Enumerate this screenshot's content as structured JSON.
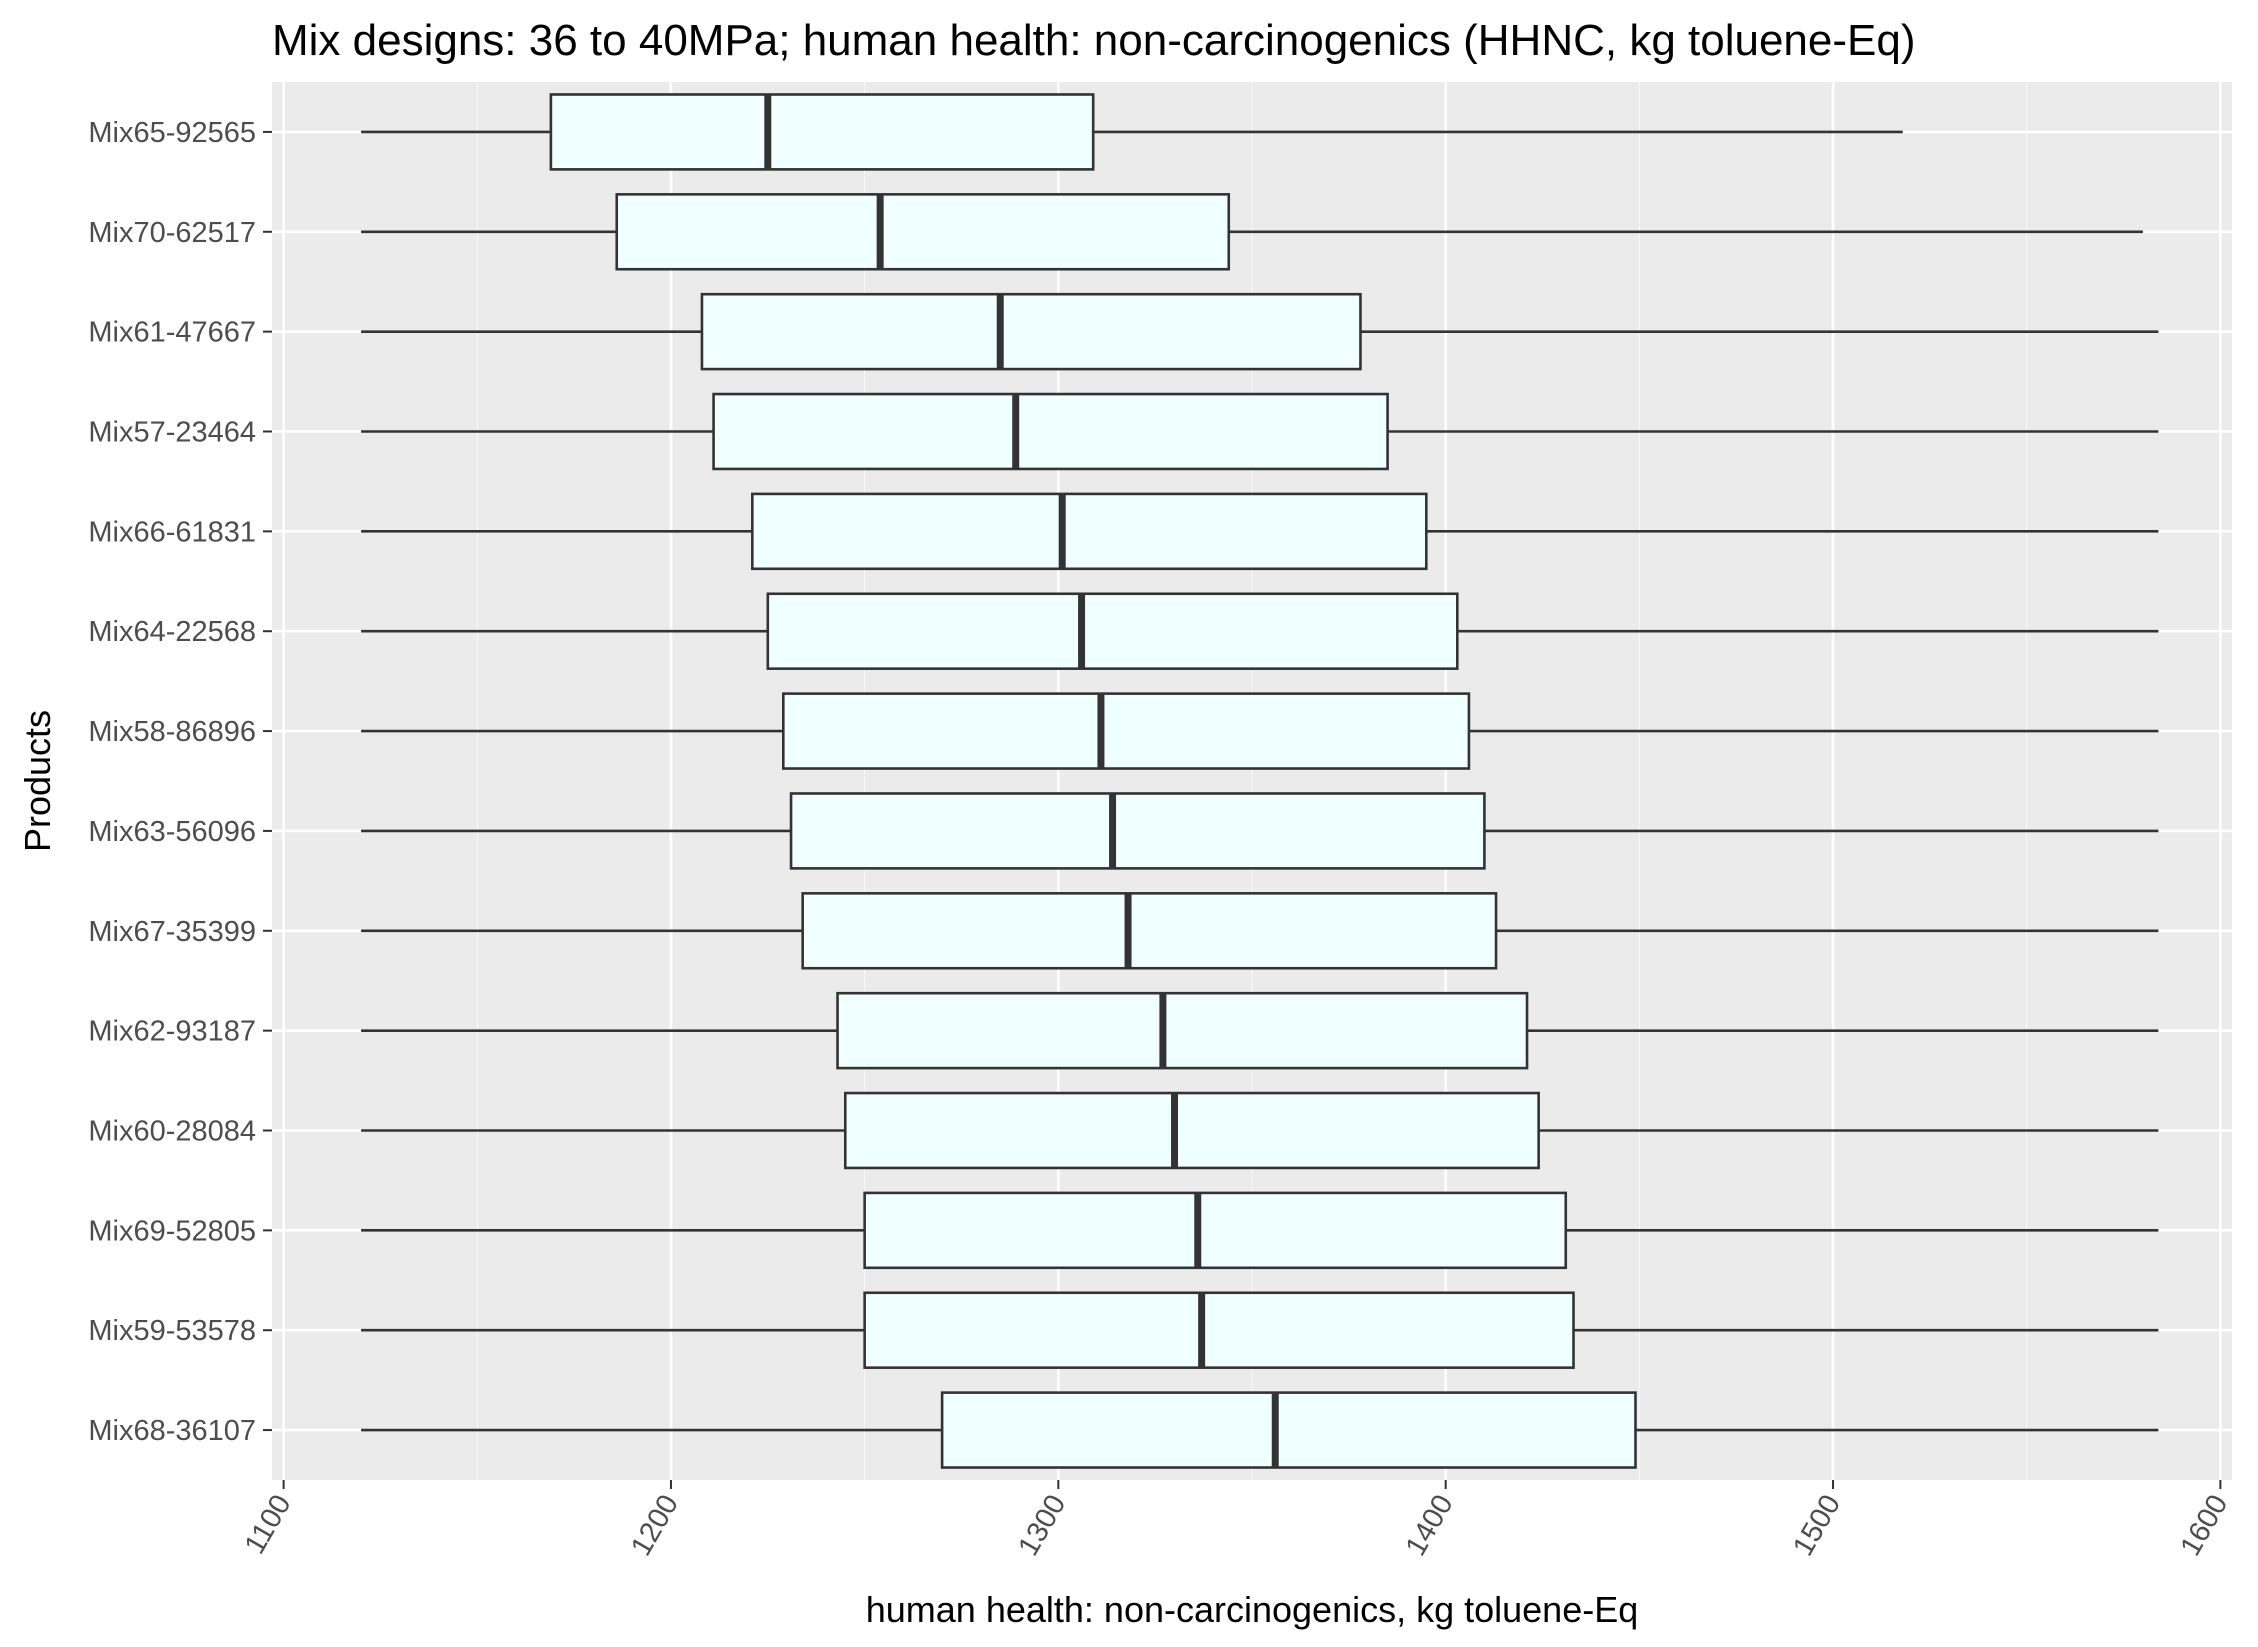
{
  "chart_data": {
    "type": "boxplot",
    "orientation": "horizontal",
    "title": "Mix designs: 36 to 40MPa; human health: non-carcinogenics (HHNC, kg toluene-Eq)",
    "xlabel": "human health: non-carcinogenics, kg toluene-Eq",
    "ylabel": "Products",
    "xlim": [
      1097,
      1603
    ],
    "x_ticks": [
      1100,
      1200,
      1300,
      1400,
      1500,
      1600
    ],
    "x_tick_labels": [
      "1100",
      "1200",
      "1300",
      "1400",
      "1500",
      "1600"
    ],
    "grid": true,
    "categories": [
      "Mix65-92565",
      "Mix70-62517",
      "Mix61-47667",
      "Mix57-23464",
      "Mix66-61831",
      "Mix64-22568",
      "Mix58-86896",
      "Mix63-56096",
      "Mix67-35399",
      "Mix62-93187",
      "Mix60-28084",
      "Mix69-52805",
      "Mix59-53578",
      "Mix68-36107"
    ],
    "series": [
      {
        "min": 1120,
        "q1": 1169,
        "median": 1225,
        "q3": 1309,
        "max": 1518
      },
      {
        "min": 1120,
        "q1": 1186,
        "median": 1254,
        "q3": 1344,
        "max": 1580
      },
      {
        "min": 1120,
        "q1": 1208,
        "median": 1285,
        "q3": 1378,
        "max": 1584
      },
      {
        "min": 1120,
        "q1": 1211,
        "median": 1289,
        "q3": 1385,
        "max": 1584
      },
      {
        "min": 1120,
        "q1": 1221,
        "median": 1301,
        "q3": 1395,
        "max": 1584
      },
      {
        "min": 1120,
        "q1": 1225,
        "median": 1306,
        "q3": 1403,
        "max": 1584
      },
      {
        "min": 1120,
        "q1": 1229,
        "median": 1311,
        "q3": 1406,
        "max": 1584
      },
      {
        "min": 1120,
        "q1": 1231,
        "median": 1314,
        "q3": 1410,
        "max": 1584
      },
      {
        "min": 1120,
        "q1": 1234,
        "median": 1318,
        "q3": 1413,
        "max": 1584
      },
      {
        "min": 1120,
        "q1": 1243,
        "median": 1327,
        "q3": 1421,
        "max": 1584
      },
      {
        "min": 1120,
        "q1": 1245,
        "median": 1330,
        "q3": 1424,
        "max": 1584
      },
      {
        "min": 1120,
        "q1": 1250,
        "median": 1336,
        "q3": 1431,
        "max": 1584
      },
      {
        "min": 1120,
        "q1": 1250,
        "median": 1337,
        "q3": 1433,
        "max": 1584
      },
      {
        "min": 1120,
        "q1": 1270,
        "median": 1356,
        "q3": 1449,
        "max": 1584
      }
    ],
    "colors": {
      "panel": "#ebebeb",
      "box_fill": "#f0ffff",
      "line": "#333333",
      "grid": "#ffffff"
    }
  }
}
